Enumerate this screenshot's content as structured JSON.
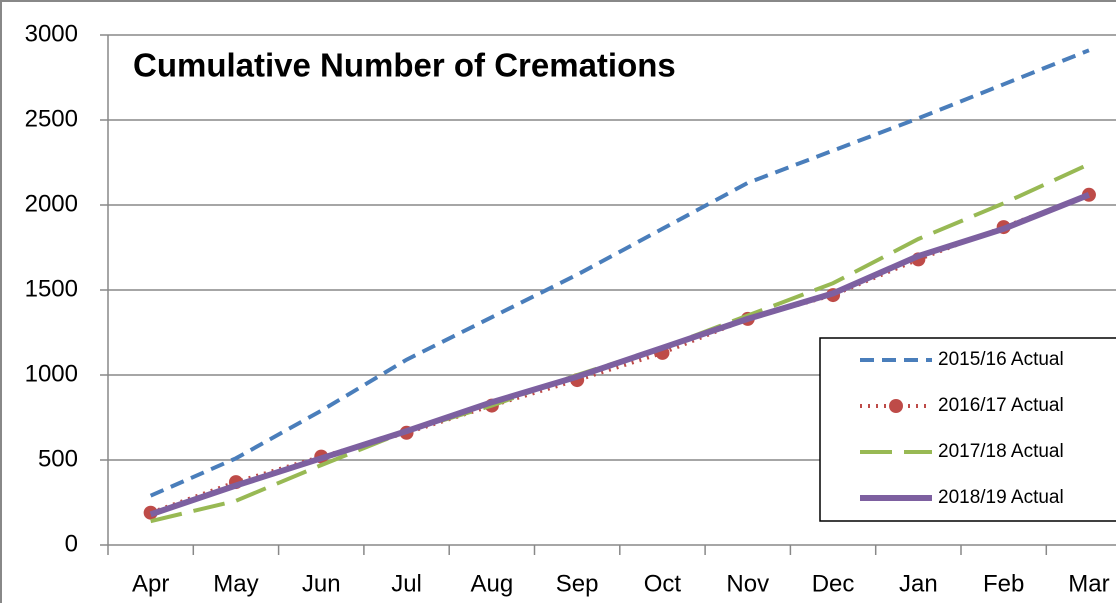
{
  "chart_data": {
    "type": "line",
    "title": "Cumulative Number of Cremations",
    "categories": [
      "Apr",
      "May",
      "Jun",
      "Jul",
      "Aug",
      "Sep",
      "Oct",
      "Nov",
      "Dec",
      "Jan",
      "Feb",
      "Mar"
    ],
    "series": [
      {
        "name": "2015/16 Actual",
        "color": "#4a7ebb",
        "style": "dashed",
        "values": [
          290,
          510,
          790,
          1090,
          1340,
          1590,
          1860,
          2130,
          2320,
          2510,
          2710,
          2910
        ]
      },
      {
        "name": "2016/17 Actual",
        "color": "#be4b48",
        "style": "dotted",
        "marker": "circle",
        "values": [
          190,
          370,
          520,
          660,
          820,
          970,
          1130,
          1330,
          1470,
          1680,
          1870,
          2060
        ]
      },
      {
        "name": "2017/18 Actual",
        "color": "#98b954",
        "style": "long-dash",
        "values": [
          140,
          260,
          470,
          670,
          820,
          1000,
          1160,
          1350,
          1540,
          1800,
          2010,
          2240
        ]
      },
      {
        "name": "2018/19 Actual",
        "color": "#7d60a0",
        "style": "solid",
        "values": [
          180,
          350,
          510,
          670,
          840,
          990,
          1160,
          1330,
          1480,
          1700,
          1860,
          2060
        ]
      }
    ],
    "ylim": [
      0,
      3000
    ],
    "yticks": [
      0,
      500,
      1000,
      1500,
      2000,
      2500,
      3000
    ],
    "grid": true,
    "legend": "right"
  }
}
